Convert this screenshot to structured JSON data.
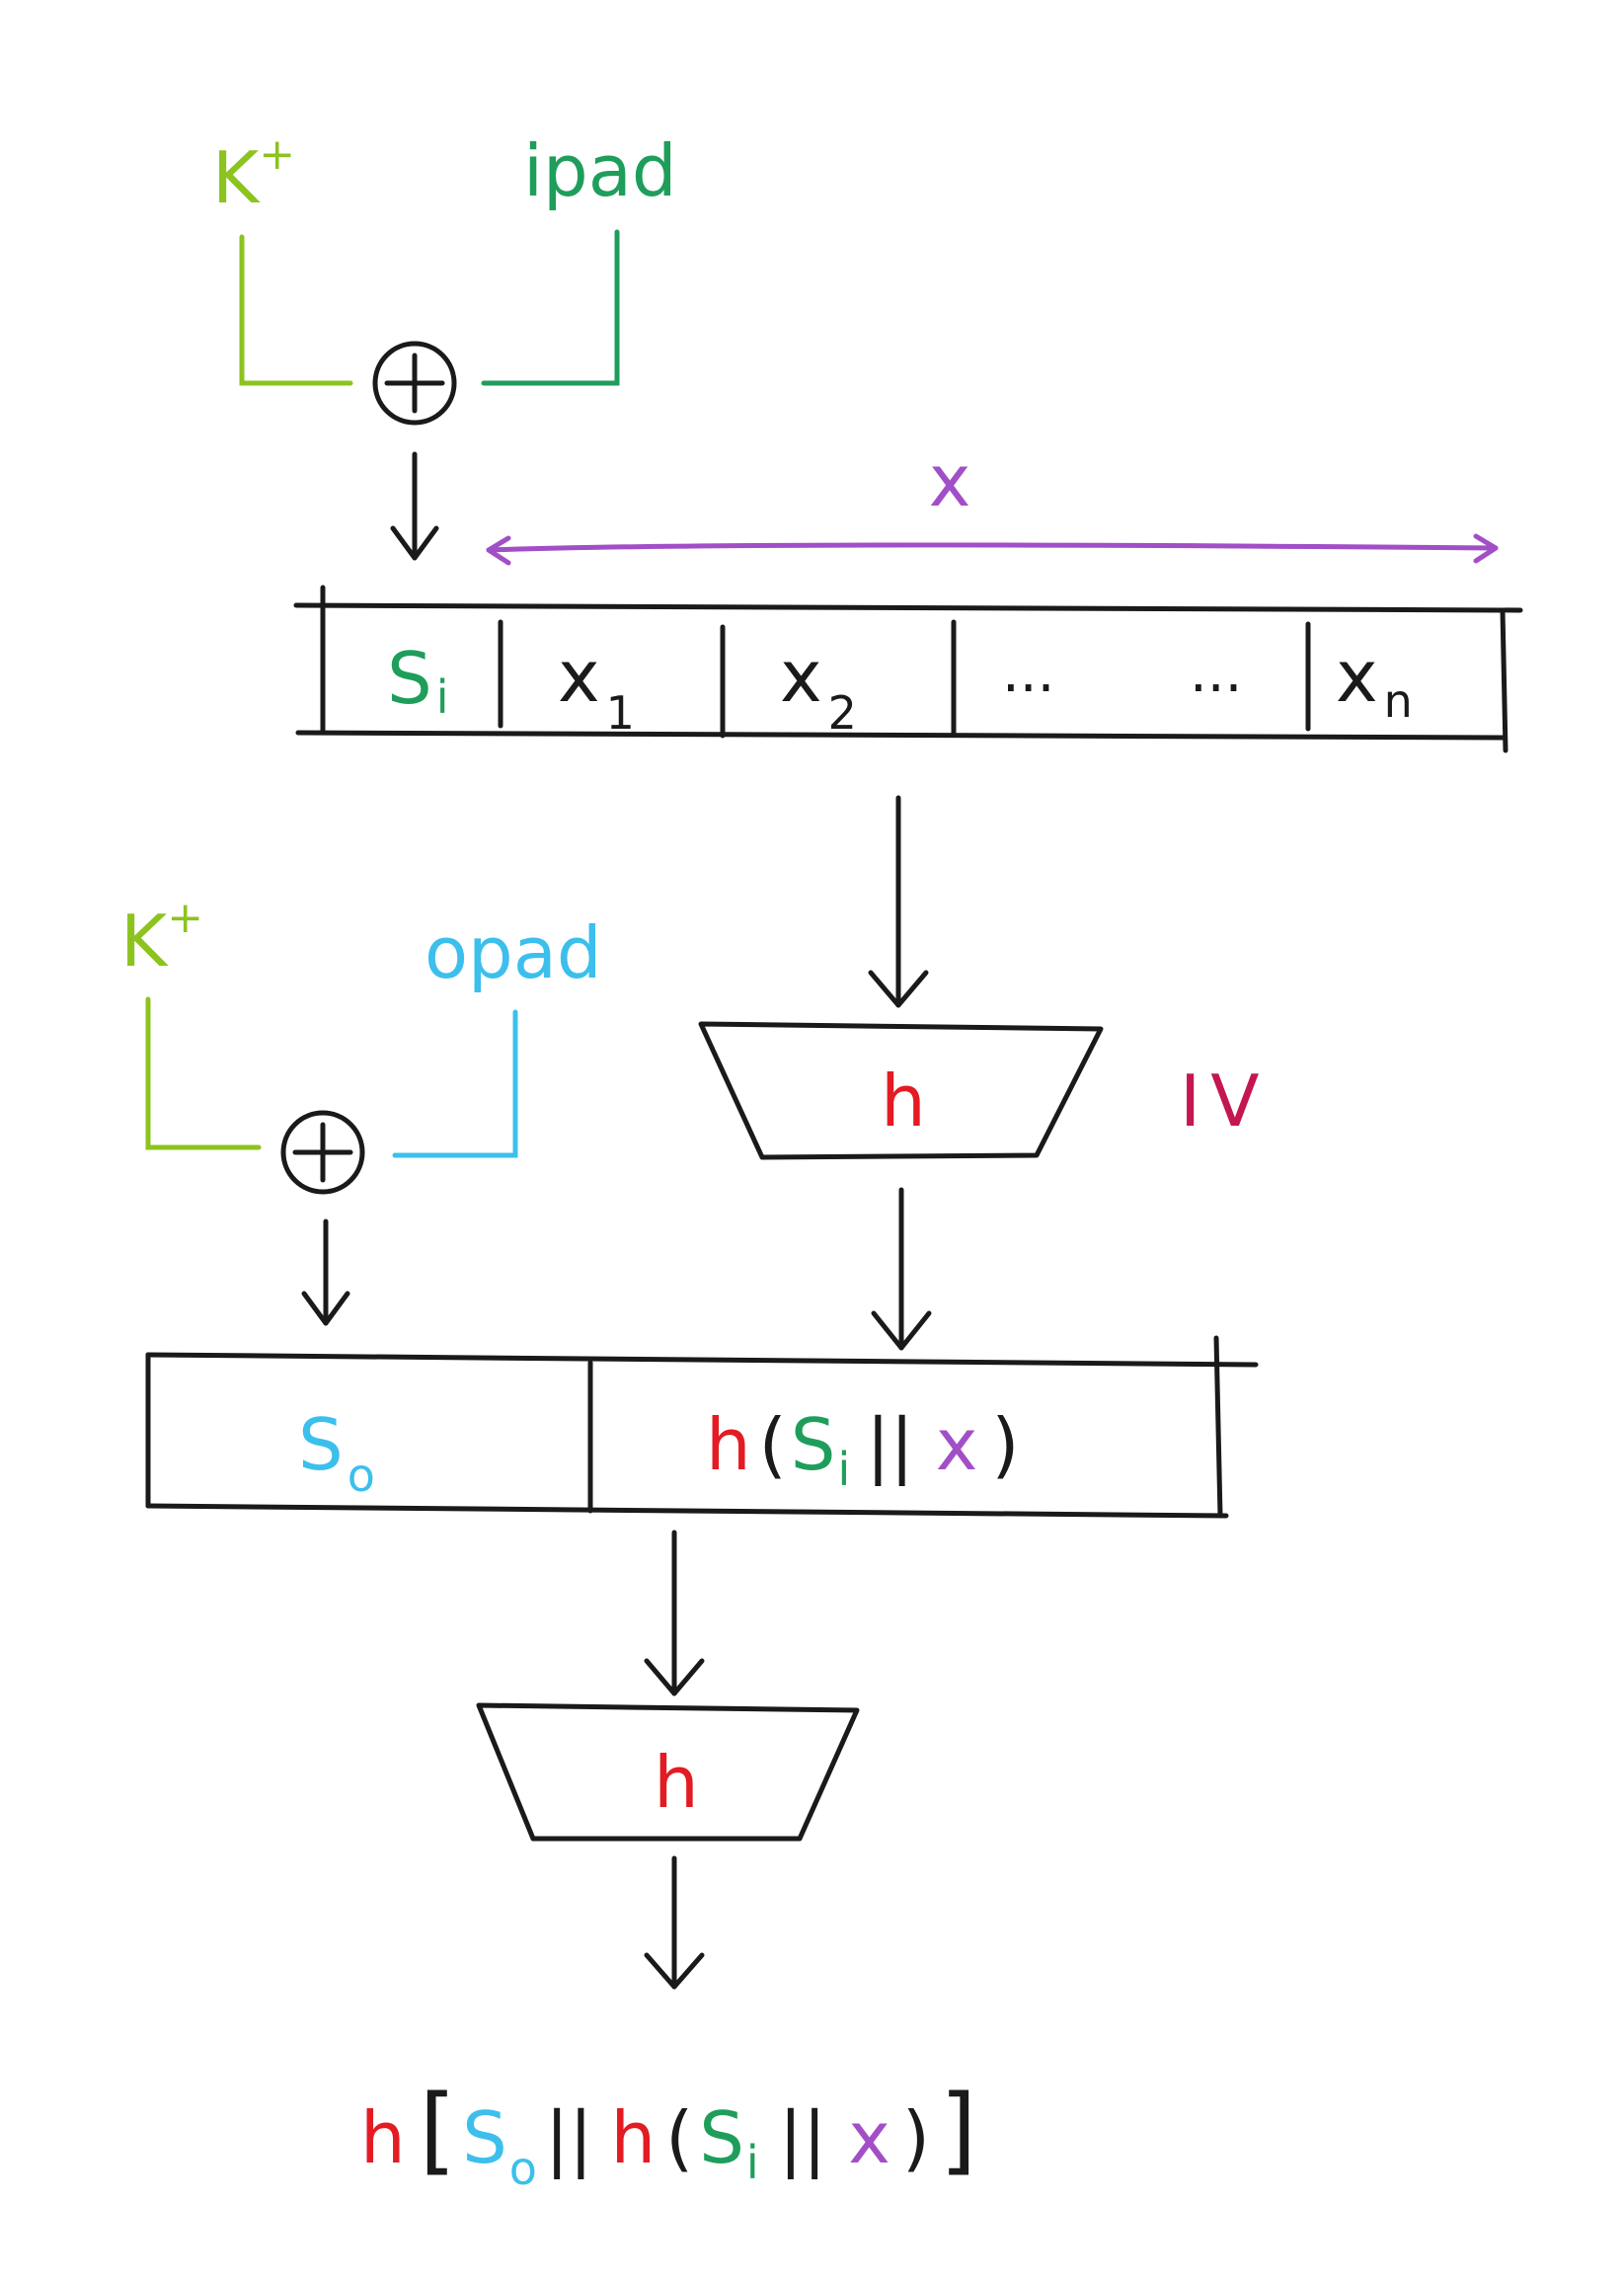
{
  "colors": {
    "ink": "#1a1a1a",
    "k_plus": "#8cc31f",
    "ipad": "#1e9e5a",
    "opad": "#3cbfec",
    "x": "#a24fc7",
    "h": "#e31b23",
    "iv": "#c4164f"
  },
  "icons": {
    "xor": "circled-plus",
    "arrow": "down-arrow",
    "hash": "trapezoid-hash-function"
  },
  "inner": {
    "key": "K",
    "key_sup": "+",
    "pad": "ipad",
    "message_label": "x",
    "blocks": [
      {
        "base": "S",
        "sub": "i"
      },
      {
        "base": "x",
        "sub": "1"
      },
      {
        "base": "x",
        "sub": "2"
      },
      {
        "base": "...",
        "sub": ""
      },
      {
        "base": "...",
        "sub": ""
      },
      {
        "base": "x",
        "sub": "n"
      }
    ],
    "hash": "h",
    "iv": "IV"
  },
  "outer": {
    "key": "K",
    "key_sup": "+",
    "pad": "opad",
    "left_block": {
      "base": "S",
      "sub": "o"
    },
    "right_block": {
      "h": "h",
      "open": "(",
      "s": "S",
      "s_sub": "i",
      "concat": "||",
      "x": "x",
      "close": ")"
    },
    "hash": "h"
  },
  "result": {
    "h": "h",
    "open_bracket": "[",
    "s": "S",
    "s_sub": "o",
    "concat1": "||",
    "h2": "h",
    "open": "(",
    "s2": "S",
    "s2_sub": "i",
    "concat2": "||",
    "x": "x",
    "close": ")",
    "close_bracket": "]"
  }
}
